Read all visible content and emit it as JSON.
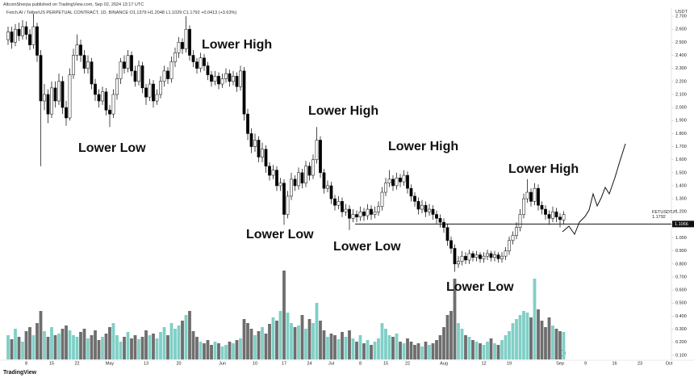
{
  "header": {
    "published": "AltcoinSherpa published on TradingView.com, Sep 02, 2024 13:17 UTC",
    "legend": "Fetch.AI / TetherUS PERPETUAL CONTRACT, 1D, BINANCE O1.1379 H1.2048 L1.1029 C1.1792 +0.0413 (+3.63%)",
    "currency": "USDT",
    "logo": "TradingView"
  },
  "chart_data": {
    "type": "candlestick",
    "symbol_tag": "FETUSDT.P",
    "up_color": "#ffffff",
    "down_color": "#000000",
    "volume_up_color": "#80cfc6",
    "volume_down_color": "#6e6e6e",
    "grid": false,
    "ylim": [
      0,
      2.75
    ],
    "yticks": [
      {
        "value": 0.1,
        "label": "0.100"
      },
      {
        "value": 0.2,
        "label": "0.200"
      },
      {
        "value": 0.3,
        "label": "0.300"
      },
      {
        "value": 0.4,
        "label": "0.400"
      },
      {
        "value": 0.5,
        "label": "0.500"
      },
      {
        "value": 0.6,
        "label": "0.600"
      },
      {
        "value": 0.7,
        "label": "0.700"
      },
      {
        "value": 0.8,
        "label": "0.800"
      },
      {
        "value": 0.9,
        "label": "0.900"
      },
      {
        "value": 1.0,
        "label": "1.000"
      },
      {
        "value": 1.1,
        "label": "1.100"
      },
      {
        "value": 1.2,
        "label": "1.200"
      },
      {
        "value": 1.3,
        "label": "1.300"
      },
      {
        "value": 1.4,
        "label": "1.400"
      },
      {
        "value": 1.5,
        "label": "1.500"
      },
      {
        "value": 1.6,
        "label": "1.600"
      },
      {
        "value": 1.7,
        "label": "1.700"
      },
      {
        "value": 1.8,
        "label": "1.800"
      },
      {
        "value": 1.9,
        "label": "1.900"
      },
      {
        "value": 2.0,
        "label": "2.000"
      },
      {
        "value": 2.1,
        "label": "2.100"
      },
      {
        "value": 2.2,
        "label": "2.200"
      },
      {
        "value": 2.3,
        "label": "2.300"
      },
      {
        "value": 2.4,
        "label": "2.400"
      },
      {
        "value": 2.5,
        "label": "2.500"
      },
      {
        "value": 2.6,
        "label": "2.600"
      },
      {
        "value": 2.7,
        "label": "2.700"
      }
    ],
    "hline": {
      "value": 1.1066,
      "label": "1.1066"
    },
    "annotations": [
      "Lower High",
      "Lower Low",
      "Lower High",
      "Lower Low",
      "Lower High",
      "Lower Low",
      "Lower High",
      "Lower Low"
    ],
    "categories": [
      null,
      null,
      null,
      null,
      null,
      "8",
      null,
      null,
      null,
      null,
      null,
      null,
      "15",
      null,
      null,
      null,
      null,
      null,
      null,
      "22",
      null,
      null,
      null,
      null,
      null,
      null,
      null,
      null,
      "May",
      null,
      null,
      null,
      null,
      null,
      null,
      null,
      null,
      null,
      "13",
      null,
      null,
      null,
      null,
      null,
      null,
      null,
      null,
      "20",
      null,
      null,
      null,
      null,
      null,
      null,
      null,
      null,
      null,
      null,
      null,
      "Jun",
      null,
      null,
      null,
      null,
      null,
      null,
      null,
      null,
      "10",
      null,
      null,
      null,
      null,
      null,
      null,
      null,
      "17",
      null,
      null,
      null,
      null,
      null,
      null,
      "24",
      null,
      null,
      null,
      null,
      null,
      "Jul",
      null,
      null,
      null,
      null,
      null,
      null,
      null,
      "8",
      null,
      null,
      null,
      null,
      null,
      null,
      "15",
      null,
      null,
      null,
      null,
      null,
      "22",
      null,
      null,
      null,
      null,
      null,
      null,
      null,
      null,
      null,
      "Aug",
      null,
      null,
      null,
      null,
      null,
      null,
      null,
      null,
      null,
      null,
      "12",
      null,
      null,
      null,
      null,
      null,
      null,
      "19",
      null,
      null,
      null,
      null,
      null,
      null,
      null,
      null,
      null,
      null,
      null,
      null,
      null,
      "Sep",
      null,
      null,
      null,
      null,
      null,
      null,
      "9",
      null,
      null,
      null,
      null,
      null,
      null,
      null,
      "16",
      null,
      null,
      null,
      null,
      null,
      null,
      "23",
      null,
      null,
      null,
      null,
      null,
      null,
      null,
      "Oct"
    ],
    "ohlc": [
      [
        2.52,
        2.62,
        2.48,
        2.58
      ],
      [
        2.58,
        2.62,
        2.45,
        2.5
      ],
      [
        2.5,
        2.64,
        2.47,
        2.6
      ],
      [
        2.6,
        2.65,
        2.51,
        2.55
      ],
      [
        2.55,
        2.67,
        2.52,
        2.62
      ],
      [
        2.62,
        2.66,
        2.52,
        2.56
      ],
      [
        2.56,
        2.6,
        2.44,
        2.48
      ],
      [
        2.48,
        2.72,
        2.45,
        2.62
      ],
      [
        2.62,
        2.65,
        2.35,
        2.4
      ],
      [
        2.4,
        2.44,
        1.55,
        2.05
      ],
      [
        2.05,
        2.18,
        1.98,
        2.1
      ],
      [
        2.1,
        2.14,
        1.88,
        1.95
      ],
      [
        1.95,
        2.2,
        1.92,
        2.15
      ],
      [
        2.15,
        2.2,
        2.0,
        2.05
      ],
      [
        2.05,
        2.26,
        2.02,
        2.2
      ],
      [
        2.2,
        2.24,
        1.95,
        2.0
      ],
      [
        2.0,
        2.05,
        1.86,
        1.92
      ],
      [
        1.92,
        2.3,
        1.9,
        2.25
      ],
      [
        2.25,
        2.45,
        2.22,
        2.4
      ],
      [
        2.4,
        2.56,
        2.36,
        2.48
      ],
      [
        2.48,
        2.52,
        2.35,
        2.4
      ],
      [
        2.4,
        2.44,
        2.26,
        2.3
      ],
      [
        2.3,
        2.4,
        2.26,
        2.35
      ],
      [
        2.35,
        2.38,
        2.14,
        2.18
      ],
      [
        2.18,
        2.22,
        2.05,
        2.1
      ],
      [
        2.1,
        2.14,
        2.0,
        2.05
      ],
      [
        2.05,
        2.16,
        2.02,
        2.12
      ],
      [
        2.12,
        2.15,
        1.94,
        1.98
      ],
      [
        1.98,
        2.02,
        1.85,
        1.95
      ],
      [
        1.95,
        2.14,
        1.92,
        2.1
      ],
      [
        2.1,
        2.26,
        2.06,
        2.22
      ],
      [
        2.22,
        2.38,
        2.18,
        2.35
      ],
      [
        2.35,
        2.4,
        2.26,
        2.3
      ],
      [
        2.3,
        2.44,
        2.27,
        2.4
      ],
      [
        2.4,
        2.43,
        2.24,
        2.28
      ],
      [
        2.28,
        2.32,
        2.16,
        2.2
      ],
      [
        2.2,
        2.36,
        2.17,
        2.32
      ],
      [
        2.32,
        2.35,
        2.11,
        2.15
      ],
      [
        2.15,
        2.18,
        2.02,
        2.08
      ],
      [
        2.08,
        2.22,
        2.05,
        2.18
      ],
      [
        2.18,
        2.21,
        2.0,
        2.05
      ],
      [
        2.05,
        2.14,
        2.02,
        2.1
      ],
      [
        2.1,
        2.24,
        2.07,
        2.2
      ],
      [
        2.2,
        2.32,
        2.16,
        2.28
      ],
      [
        2.28,
        2.31,
        2.18,
        2.22
      ],
      [
        2.22,
        2.39,
        2.19,
        2.35
      ],
      [
        2.35,
        2.46,
        2.31,
        2.42
      ],
      [
        2.42,
        2.54,
        2.38,
        2.5
      ],
      [
        2.5,
        2.53,
        2.41,
        2.45
      ],
      [
        2.45,
        2.7,
        2.42,
        2.6
      ],
      [
        2.6,
        2.63,
        2.36,
        2.4
      ],
      [
        2.4,
        2.44,
        2.31,
        2.35
      ],
      [
        2.35,
        2.38,
        2.26,
        2.3
      ],
      [
        2.3,
        2.42,
        2.27,
        2.38
      ],
      [
        2.38,
        2.41,
        2.28,
        2.32
      ],
      [
        2.32,
        2.35,
        2.21,
        2.25
      ],
      [
        2.25,
        2.28,
        2.16,
        2.2
      ],
      [
        2.2,
        2.28,
        2.17,
        2.24
      ],
      [
        2.24,
        2.27,
        2.14,
        2.18
      ],
      [
        2.18,
        2.26,
        2.15,
        2.22
      ],
      [
        2.22,
        2.3,
        2.19,
        2.26
      ],
      [
        2.26,
        2.29,
        2.16,
        2.2
      ],
      [
        2.2,
        2.28,
        2.17,
        2.24
      ],
      [
        2.24,
        2.27,
        2.12,
        2.16
      ],
      [
        2.16,
        2.32,
        2.13,
        2.28
      ],
      [
        2.28,
        2.31,
        1.9,
        1.95
      ],
      [
        1.95,
        1.99,
        1.75,
        1.8
      ],
      [
        1.8,
        1.84,
        1.65,
        1.7
      ],
      [
        1.7,
        1.8,
        1.66,
        1.75
      ],
      [
        1.75,
        1.78,
        1.58,
        1.62
      ],
      [
        1.62,
        1.73,
        1.58,
        1.68
      ],
      [
        1.68,
        1.71,
        1.5,
        1.55
      ],
      [
        1.55,
        1.58,
        1.44,
        1.48
      ],
      [
        1.48,
        1.56,
        1.45,
        1.52
      ],
      [
        1.52,
        1.55,
        1.36,
        1.4
      ],
      [
        1.4,
        1.46,
        1.36,
        1.42
      ],
      [
        1.42,
        1.45,
        1.1,
        1.18
      ],
      [
        1.18,
        1.36,
        1.15,
        1.32
      ],
      [
        1.32,
        1.5,
        1.29,
        1.45
      ],
      [
        1.45,
        1.48,
        1.36,
        1.4
      ],
      [
        1.4,
        1.54,
        1.37,
        1.5
      ],
      [
        1.5,
        1.53,
        1.38,
        1.42
      ],
      [
        1.42,
        1.59,
        1.39,
        1.55
      ],
      [
        1.55,
        1.58,
        1.44,
        1.48
      ],
      [
        1.48,
        1.64,
        1.45,
        1.6
      ],
      [
        1.6,
        1.85,
        1.57,
        1.75
      ],
      [
        1.75,
        1.78,
        1.46,
        1.5
      ],
      [
        1.5,
        1.53,
        1.34,
        1.38
      ],
      [
        1.38,
        1.44,
        1.35,
        1.4
      ],
      [
        1.4,
        1.43,
        1.26,
        1.3
      ],
      [
        1.3,
        1.33,
        1.21,
        1.25
      ],
      [
        1.25,
        1.32,
        1.22,
        1.28
      ],
      [
        1.28,
        1.31,
        1.16,
        1.2
      ],
      [
        1.2,
        1.26,
        1.17,
        1.22
      ],
      [
        1.22,
        1.25,
        1.06,
        1.15
      ],
      [
        1.15,
        1.22,
        1.12,
        1.18
      ],
      [
        1.18,
        1.21,
        1.12,
        1.16
      ],
      [
        1.16,
        1.24,
        1.13,
        1.2
      ],
      [
        1.2,
        1.23,
        1.13,
        1.17
      ],
      [
        1.17,
        1.26,
        1.14,
        1.22
      ],
      [
        1.22,
        1.25,
        1.14,
        1.18
      ],
      [
        1.18,
        1.24,
        1.15,
        1.2
      ],
      [
        1.2,
        1.28,
        1.17,
        1.24
      ],
      [
        1.24,
        1.39,
        1.21,
        1.35
      ],
      [
        1.35,
        1.46,
        1.32,
        1.42
      ],
      [
        1.42,
        1.52,
        1.39,
        1.45
      ],
      [
        1.45,
        1.48,
        1.36,
        1.4
      ],
      [
        1.4,
        1.5,
        1.37,
        1.46
      ],
      [
        1.46,
        1.49,
        1.39,
        1.43
      ],
      [
        1.43,
        1.52,
        1.4,
        1.48
      ],
      [
        1.48,
        1.51,
        1.34,
        1.38
      ],
      [
        1.38,
        1.41,
        1.28,
        1.32
      ],
      [
        1.32,
        1.35,
        1.24,
        1.28
      ],
      [
        1.28,
        1.31,
        1.18,
        1.22
      ],
      [
        1.22,
        1.29,
        1.19,
        1.25
      ],
      [
        1.25,
        1.28,
        1.16,
        1.2
      ],
      [
        1.2,
        1.26,
        1.17,
        1.22
      ],
      [
        1.22,
        1.25,
        1.14,
        1.18
      ],
      [
        1.18,
        1.21,
        1.11,
        1.15
      ],
      [
        1.15,
        1.18,
        1.08,
        1.12
      ],
      [
        1.12,
        1.15,
        1.04,
        1.08
      ],
      [
        1.08,
        1.11,
        0.94,
        0.98
      ],
      [
        0.98,
        1.01,
        0.88,
        0.92
      ],
      [
        0.92,
        0.95,
        0.74,
        0.8
      ],
      [
        0.8,
        0.86,
        0.77,
        0.82
      ],
      [
        0.82,
        0.9,
        0.79,
        0.86
      ],
      [
        0.86,
        0.89,
        0.8,
        0.83
      ],
      [
        0.83,
        0.91,
        0.8,
        0.88
      ],
      [
        0.88,
        0.9,
        0.82,
        0.85
      ],
      [
        0.85,
        0.9,
        0.82,
        0.87
      ],
      [
        0.87,
        0.89,
        0.81,
        0.84
      ],
      [
        0.84,
        0.89,
        0.81,
        0.86
      ],
      [
        0.86,
        0.91,
        0.83,
        0.88
      ],
      [
        0.88,
        0.9,
        0.82,
        0.85
      ],
      [
        0.85,
        0.9,
        0.82,
        0.87
      ],
      [
        0.87,
        0.89,
        0.81,
        0.84
      ],
      [
        0.84,
        0.89,
        0.81,
        0.86
      ],
      [
        0.86,
        0.93,
        0.83,
        0.9
      ],
      [
        0.9,
        1.01,
        0.87,
        0.98
      ],
      [
        0.98,
        1.05,
        0.95,
        1.02
      ],
      [
        1.02,
        1.12,
        0.99,
        1.08
      ],
      [
        1.08,
        1.22,
        1.05,
        1.18
      ],
      [
        1.18,
        1.34,
        1.15,
        1.3
      ],
      [
        1.3,
        1.45,
        1.27,
        1.35
      ],
      [
        1.35,
        1.38,
        1.24,
        1.28
      ],
      [
        1.28,
        1.42,
        1.25,
        1.38
      ],
      [
        1.38,
        1.41,
        1.21,
        1.25
      ],
      [
        1.25,
        1.28,
        1.18,
        1.22
      ],
      [
        1.22,
        1.25,
        1.14,
        1.18
      ],
      [
        1.18,
        1.21,
        1.1,
        1.15
      ],
      [
        1.15,
        1.24,
        1.12,
        1.2
      ],
      [
        1.2,
        1.23,
        1.12,
        1.16
      ],
      [
        1.16,
        1.19,
        1.08,
        1.14
      ],
      [
        1.1379,
        1.2048,
        1.1029,
        1.1792
      ],
      null,
      null,
      null,
      null,
      null,
      null,
      null,
      null,
      null,
      null,
      null,
      null,
      null,
      null,
      null,
      null,
      null,
      null,
      null,
      null,
      null,
      null,
      null,
      null,
      null,
      null,
      null,
      null,
      null
    ],
    "volume": [
      30,
      25,
      38,
      28,
      22,
      35,
      40,
      30,
      45,
      60,
      35,
      28,
      40,
      30,
      32,
      38,
      42,
      36,
      30,
      28,
      34,
      38,
      26,
      30,
      36,
      24,
      28,
      32,
      40,
      45,
      30,
      22,
      28,
      34,
      26,
      30,
      25,
      28,
      36,
      30,
      32,
      26,
      34,
      40,
      30,
      45,
      38,
      42,
      48,
      55,
      60,
      35,
      28,
      22,
      20,
      24,
      18,
      22,
      20,
      16,
      18,
      22,
      20,
      24,
      26,
      50,
      45,
      38,
      30,
      35,
      40,
      32,
      44,
      52,
      48,
      60,
      110,
      58,
      45,
      40,
      42,
      55,
      38,
      50,
      45,
      70,
      48,
      36,
      28,
      32,
      30,
      25,
      34,
      28,
      36,
      26,
      22,
      30,
      20,
      24,
      18,
      22,
      26,
      45,
      38,
      30,
      28,
      32,
      22,
      20,
      26,
      22,
      18,
      20,
      16,
      22,
      18,
      20,
      24,
      30,
      40,
      55,
      60,
      100,
      45,
      38,
      30,
      28,
      24,
      22,
      20,
      18,
      22,
      26,
      20,
      18,
      24,
      30,
      35,
      45,
      50,
      55,
      60,
      58,
      52,
      100,
      62,
      48,
      40,
      52,
      42,
      38,
      35,
      34,
      null,
      null,
      null,
      null,
      null,
      null,
      null,
      null,
      null,
      null,
      null,
      null,
      null,
      null,
      null,
      null,
      null,
      null,
      null,
      null,
      null,
      null,
      null,
      null,
      null,
      null,
      null,
      null,
      null
    ]
  }
}
